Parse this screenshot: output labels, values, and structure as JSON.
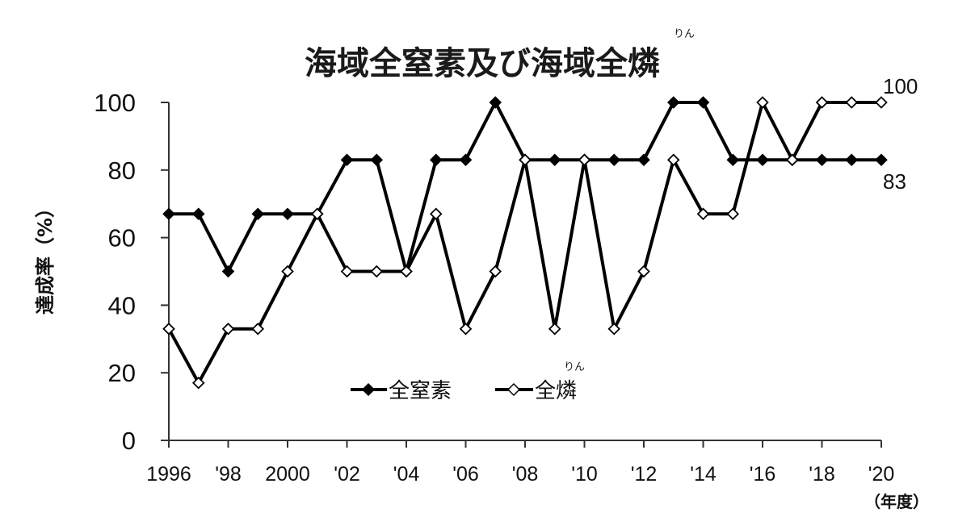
{
  "chart_data": {
    "type": "line",
    "title": "海域全窒素及び海域全燐",
    "title_ruby": "りん",
    "ylabel": "達成率（%）",
    "x_unit": "（年度）",
    "ylim": [
      0,
      100
    ],
    "yticks": [
      0,
      20,
      40,
      60,
      80,
      100
    ],
    "x": [
      1996,
      1997,
      1998,
      1999,
      2000,
      2001,
      2002,
      2003,
      2004,
      2005,
      2006,
      2007,
      2008,
      2009,
      2010,
      2011,
      2012,
      2013,
      2014,
      2015,
      2016,
      2017,
      2018,
      2019,
      2020
    ],
    "xtick_labels": [
      "1996",
      "'98",
      "2000",
      "'02",
      "'04",
      "'06",
      "'08",
      "'10",
      "'12",
      "'14",
      "'16",
      "'18",
      "'20"
    ],
    "grid": false,
    "legend_position": "bottom-center",
    "series": [
      {
        "name": "全窒素",
        "marker": "filled-diamond",
        "color": "#000000",
        "values": [
          67,
          67,
          50,
          67,
          67,
          67,
          83,
          83,
          50,
          83,
          83,
          100,
          83,
          83,
          83,
          83,
          83,
          100,
          100,
          83,
          83,
          83,
          83,
          83,
          83
        ],
        "end_label": "83"
      },
      {
        "name": "全燐",
        "name_ruby": "りん",
        "marker": "hollow-diamond",
        "color": "#000000",
        "values": [
          33,
          17,
          33,
          33,
          50,
          67,
          50,
          50,
          50,
          67,
          33,
          50,
          83,
          33,
          83,
          33,
          50,
          83,
          67,
          67,
          100,
          83,
          100,
          100,
          100
        ],
        "end_label": "100"
      }
    ]
  }
}
